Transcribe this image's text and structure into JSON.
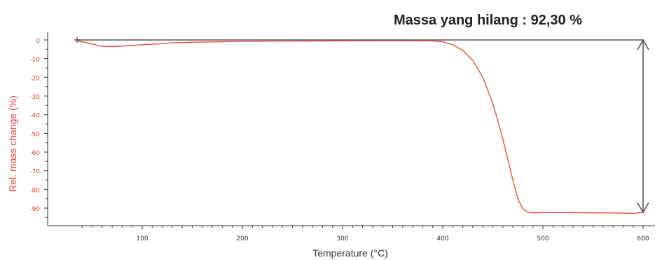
{
  "chart_data": {
    "type": "line",
    "annotation": "Massa yang hilang : 92,30 %",
    "xlabel": "Temperature (°C)",
    "ylabel": "Rel. mass change (%)",
    "xlim": [
      35,
      600
    ],
    "ylim": [
      -97,
      3
    ],
    "xticks": [
      100,
      200,
      300,
      400,
      500,
      600
    ],
    "yticks": [
      0,
      -10,
      -20,
      -30,
      -40,
      -50,
      -60,
      -70,
      -80,
      -90
    ],
    "grid": false,
    "series": [
      {
        "color": "#e8443c",
        "x": [
          35,
          45,
          55,
          62,
          70,
          80,
          90,
          100,
          110,
          120,
          130,
          150,
          175,
          200,
          250,
          300,
          350,
          390,
          400,
          410,
          420,
          430,
          440,
          450,
          455,
          460,
          465,
          470,
          475,
          480,
          485,
          490,
          500,
          520,
          550,
          570,
          590,
          600
        ],
        "y": [
          -0.5,
          -1.5,
          -2.8,
          -3.5,
          -3.6,
          -3.3,
          -2.9,
          -2.6,
          -2.3,
          -2.0,
          -1.5,
          -1.2,
          -1.0,
          -0.8,
          -0.6,
          -0.5,
          -0.4,
          -0.5,
          -1.0,
          -2.5,
          -5.5,
          -11,
          -20,
          -34,
          -43,
          -53,
          -64,
          -75,
          -85,
          -90.5,
          -92.2,
          -92.5,
          -92.4,
          -92.4,
          -92.5,
          -92.6,
          -92.8,
          -92.3
        ]
      }
    ],
    "colors": {
      "axis": "#333333",
      "tick_label": "#333333",
      "ytick_label": "#e8443c",
      "ylabel": "#e8443c",
      "guide": "#555555"
    }
  }
}
